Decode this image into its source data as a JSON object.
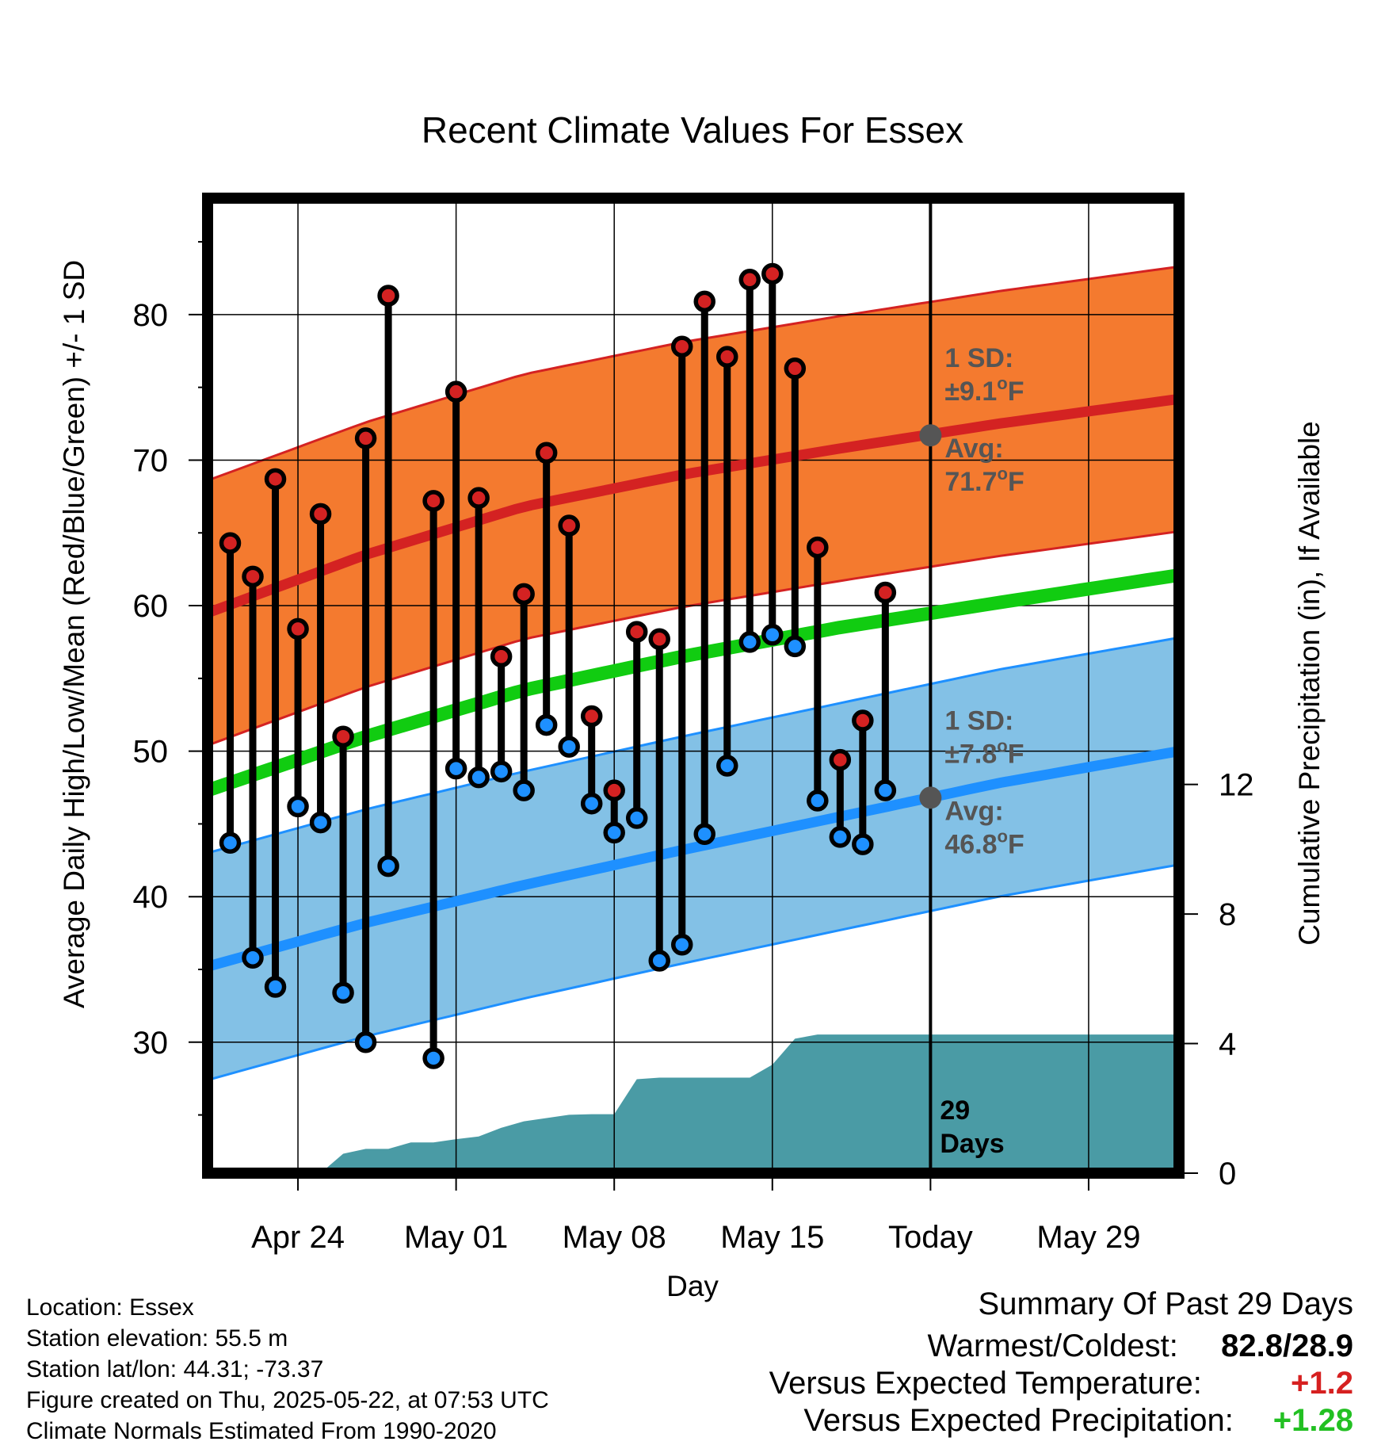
{
  "chart_data": {
    "type": "line",
    "title": "Recent Climate Values For Essex",
    "xlabel": "Day",
    "ylabel_left": "Average Daily High/Low/Mean (Red/Blue/Green) +/- 1 SD",
    "ylabel_right": "Cumulative Precipitation (in), If Available",
    "x_range": [
      "2025-04-20",
      "2025-06-02"
    ],
    "ylim_left": [
      21,
      88
    ],
    "ylim_right": [
      0,
      30.1
    ],
    "grid": true,
    "x_ticks": [
      {
        "date": "2025-04-24",
        "label": "Apr 24"
      },
      {
        "date": "2025-05-01",
        "label": "May 01"
      },
      {
        "date": "2025-05-08",
        "label": "May 08"
      },
      {
        "date": "2025-05-15",
        "label": "May 15"
      },
      {
        "date": "2025-05-22",
        "label": "Today"
      },
      {
        "date": "2025-05-29",
        "label": "May 29"
      }
    ],
    "y_ticks_left": [
      30,
      40,
      50,
      60,
      70,
      80
    ],
    "y_ticks_right": [
      0,
      4,
      8,
      12
    ],
    "today": "2025-05-22",
    "today_label": [
      "29",
      "Days"
    ],
    "observed": [
      {
        "date": "2025-04-21",
        "high": 64.3,
        "low": 43.7
      },
      {
        "date": "2025-04-22",
        "high": 62.0,
        "low": 35.8
      },
      {
        "date": "2025-04-23",
        "high": 68.7,
        "low": 33.8
      },
      {
        "date": "2025-04-24",
        "high": 58.4,
        "low": 46.2
      },
      {
        "date": "2025-04-25",
        "high": 66.3,
        "low": 45.1
      },
      {
        "date": "2025-04-26",
        "high": 51.0,
        "low": 33.4
      },
      {
        "date": "2025-04-27",
        "high": 71.5,
        "low": 30.0
      },
      {
        "date": "2025-04-28",
        "high": 81.3,
        "low": 42.1
      },
      {
        "date": "2025-04-30",
        "high": 67.2,
        "low": 28.9
      },
      {
        "date": "2025-05-01",
        "high": 74.7,
        "low": 48.8
      },
      {
        "date": "2025-05-02",
        "high": 67.4,
        "low": 48.2
      },
      {
        "date": "2025-05-03",
        "high": 56.5,
        "low": 48.6
      },
      {
        "date": "2025-05-04",
        "high": 60.8,
        "low": 47.3
      },
      {
        "date": "2025-05-05",
        "high": 70.5,
        "low": 51.8
      },
      {
        "date": "2025-05-06",
        "high": 65.5,
        "low": 50.3
      },
      {
        "date": "2025-05-07",
        "high": 52.4,
        "low": 46.4
      },
      {
        "date": "2025-05-08",
        "high": 47.3,
        "low": 44.4
      },
      {
        "date": "2025-05-09",
        "high": 58.2,
        "low": 45.4
      },
      {
        "date": "2025-05-10",
        "high": 57.7,
        "low": 35.6
      },
      {
        "date": "2025-05-11",
        "high": 77.8,
        "low": 36.7
      },
      {
        "date": "2025-05-12",
        "high": 80.9,
        "low": 44.3
      },
      {
        "date": "2025-05-13",
        "high": 77.1,
        "low": 49.0
      },
      {
        "date": "2025-05-14",
        "high": 82.4,
        "low": 57.5
      },
      {
        "date": "2025-05-15",
        "high": 82.8,
        "low": 58.0
      },
      {
        "date": "2025-05-16",
        "high": 76.3,
        "low": 57.2
      },
      {
        "date": "2025-05-17",
        "high": 64.0,
        "low": 46.6
      },
      {
        "date": "2025-05-18",
        "high": 49.4,
        "low": 44.1
      },
      {
        "date": "2025-05-19",
        "high": 52.1,
        "low": 43.6
      },
      {
        "date": "2025-05-20",
        "high": 60.9,
        "low": 47.3
      }
    ],
    "normals": {
      "dates": [
        "2025-04-20",
        "2025-04-27",
        "2025-05-04",
        "2025-05-11",
        "2025-05-18",
        "2025-05-25",
        "2025-06-02"
      ],
      "high_avg": [
        59.5,
        63.5,
        66.8,
        69.0,
        70.8,
        72.5,
        74.2
      ],
      "high_sd": 9.1,
      "low_avg": [
        35.2,
        38.2,
        40.8,
        43.2,
        45.5,
        47.8,
        50.0
      ],
      "low_sd": 7.8,
      "mean_avg": [
        47.3,
        51.0,
        54.2,
        56.5,
        58.5,
        60.2,
        62.1
      ]
    },
    "precip_cumulative": [
      {
        "date": "2025-04-24",
        "value": 0.0
      },
      {
        "date": "2025-04-25",
        "value": 0.0
      },
      {
        "date": "2025-04-26",
        "value": 0.6
      },
      {
        "date": "2025-04-27",
        "value": 0.75
      },
      {
        "date": "2025-04-28",
        "value": 0.75
      },
      {
        "date": "2025-04-29",
        "value": 0.95
      },
      {
        "date": "2025-04-30",
        "value": 0.95
      },
      {
        "date": "2025-05-01",
        "value": 1.05
      },
      {
        "date": "2025-05-02",
        "value": 1.13
      },
      {
        "date": "2025-05-03",
        "value": 1.4
      },
      {
        "date": "2025-05-04",
        "value": 1.6
      },
      {
        "date": "2025-05-05",
        "value": 1.7
      },
      {
        "date": "2025-05-06",
        "value": 1.8
      },
      {
        "date": "2025-05-07",
        "value": 1.82
      },
      {
        "date": "2025-05-08",
        "value": 1.82
      },
      {
        "date": "2025-05-09",
        "value": 2.9
      },
      {
        "date": "2025-05-10",
        "value": 2.95
      },
      {
        "date": "2025-05-11",
        "value": 2.95
      },
      {
        "date": "2025-05-12",
        "value": 2.95
      },
      {
        "date": "2025-05-13",
        "value": 2.95
      },
      {
        "date": "2025-05-14",
        "value": 2.95
      },
      {
        "date": "2025-05-15",
        "value": 3.35
      },
      {
        "date": "2025-05-16",
        "value": 4.15
      },
      {
        "date": "2025-05-17",
        "value": 4.28
      },
      {
        "date": "2025-05-18",
        "value": 4.28
      },
      {
        "date": "2025-06-02",
        "value": 4.28
      }
    ],
    "annotations": {
      "high": {
        "sd_title": "1 SD:",
        "sd_value": "±9.1",
        "sd_unit": "F",
        "avg_title": "Avg:",
        "avg_value": "71.7",
        "avg_unit": "F",
        "avg": 71.7
      },
      "low": {
        "sd_title": "1 SD:",
        "sd_value": "±7.8",
        "sd_unit": "F",
        "avg_title": "Avg:",
        "avg_value": "46.8",
        "avg_unit": "F",
        "avg": 46.8
      }
    },
    "colors": {
      "high_band": "#f47a2f",
      "high_line": "#d42222",
      "high_dot": "#d42222",
      "low_band": "#83c1e6",
      "low_line": "#1e90ff",
      "low_dot": "#1e90ff",
      "mean_line": "#11cc11",
      "precip": "#4a9ba5",
      "annotation": "#555555"
    }
  },
  "meta": {
    "location": "Location: Essex",
    "elevation": "Station elevation: 55.5 m",
    "latlon": "Station lat/lon: 44.31; -73.37",
    "created": "Figure created on Thu, 2025-05-22, at 07:53 UTC",
    "normals": "Climate Normals Estimated From 1990-2020"
  },
  "summary": {
    "title": "Summary Of Past 29 Days",
    "warmest_label": "Warmest/Coldest:",
    "warmest_value": "82.8/28.9",
    "temp_label": "Versus Expected Temperature:",
    "temp_value": "+1.2",
    "precip_label": "Versus Expected Precipitation:",
    "precip_value": "+1.28"
  }
}
